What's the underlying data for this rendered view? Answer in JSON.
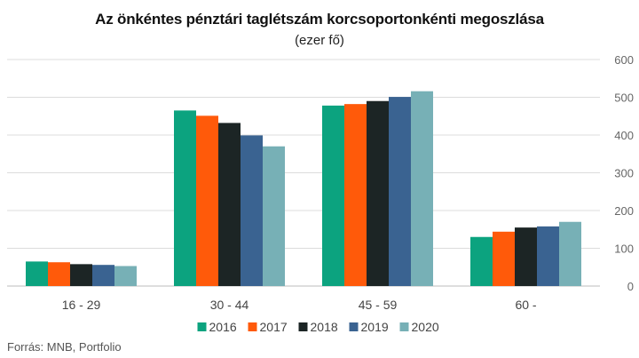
{
  "chart_data": {
    "type": "bar",
    "title": "Az önkéntes pénztári taglétszám korcsoportonkénti megoszlása",
    "subtitle": "(ezer fő)",
    "categories": [
      "16 - 29",
      "30 - 44",
      "45 - 59",
      "60 -"
    ],
    "series": [
      {
        "name": "2016",
        "color": "#0ca37f",
        "values": [
          65,
          465,
          478,
          130
        ]
      },
      {
        "name": "2017",
        "color": "#ff5a0a",
        "values": [
          63,
          451,
          482,
          144
        ]
      },
      {
        "name": "2018",
        "color": "#1c2525",
        "values": [
          58,
          432,
          490,
          155
        ]
      },
      {
        "name": "2019",
        "color": "#3a6391",
        "values": [
          56,
          399,
          501,
          158
        ]
      },
      {
        "name": "2020",
        "color": "#77b0b6",
        "values": [
          53,
          370,
          516,
          170
        ]
      }
    ],
    "ylim": [
      0,
      600
    ],
    "yticks": [
      0,
      100,
      200,
      300,
      400,
      500,
      600
    ],
    "y_axis_side": "right",
    "grid": true,
    "legend_position": "bottom"
  },
  "source": "Forrás: MNB, Portfolio"
}
